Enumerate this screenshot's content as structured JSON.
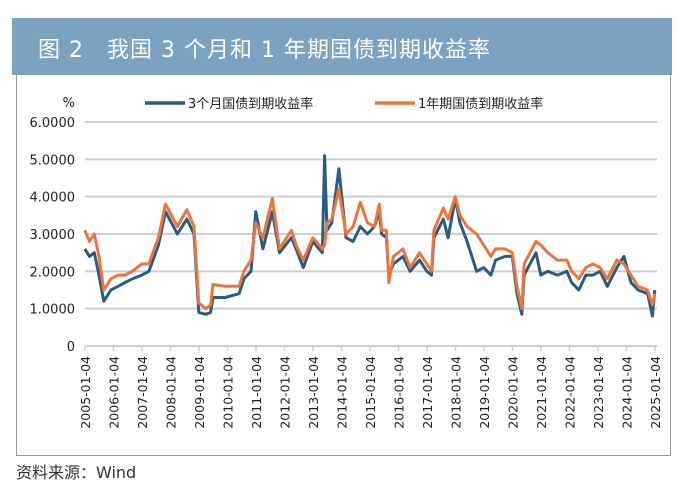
{
  "header": {
    "title": "图 2　我国 3 个月和 1 年期国债到期收益率"
  },
  "source": "资料来源：Wind",
  "chart_data": {
    "type": "line",
    "title": "图 2　我国 3 个月和 1 年期国债到期收益率",
    "ylabel": "%",
    "xlabel": "",
    "ylim": [
      0,
      6
    ],
    "yticks": [
      "0",
      "1.0000",
      "2.0000",
      "3.0000",
      "4.0000",
      "5.0000",
      "6.0000"
    ],
    "xticks": [
      "2005-01-04",
      "2006-01-04",
      "2007-01-04",
      "2008-01-04",
      "2009-01-04",
      "2010-01-04",
      "2011-01-04",
      "2012-01-04",
      "2013-01-04",
      "2014-01-04",
      "2015-01-04",
      "2016-01-04",
      "2017-01-04",
      "2018-01-04",
      "2019-01-04",
      "2020-01-04",
      "2021-01-04",
      "2022-01-04",
      "2023-01-04",
      "2024-01-04",
      "2025-01-04"
    ],
    "grid": true,
    "legend": "top",
    "series": [
      {
        "name": "3个月国债到期收益率",
        "color": "#2b5b80",
        "x": [
          "2005-01",
          "2005-03",
          "2005-05",
          "2005-07",
          "2005-09",
          "2005-12",
          "2006-03",
          "2006-06",
          "2006-09",
          "2007-01",
          "2007-04",
          "2007-08",
          "2007-11",
          "2008-04",
          "2008-08",
          "2008-11",
          "2009-01",
          "2009-04",
          "2009-06",
          "2009-07",
          "2009-12",
          "2010-06",
          "2010-08",
          "2010-11",
          "2011-01",
          "2011-04",
          "2011-08",
          "2011-11",
          "2012-04",
          "2012-06",
          "2012-09",
          "2013-01",
          "2013-05",
          "2013-06",
          "2013-07",
          "2013-09",
          "2013-12",
          "2014-03",
          "2014-06",
          "2014-09",
          "2014-12",
          "2015-03",
          "2015-05",
          "2015-06",
          "2015-08",
          "2015-09",
          "2015-11",
          "2016-03",
          "2016-06",
          "2016-10",
          "2017-01",
          "2017-03",
          "2017-04",
          "2017-08",
          "2017-10",
          "2018-01",
          "2018-03",
          "2018-06",
          "2018-10",
          "2019-01",
          "2019-04",
          "2019-06",
          "2019-10",
          "2020-01",
          "2020-03",
          "2020-05",
          "2020-06",
          "2020-11",
          "2021-01",
          "2021-04",
          "2021-08",
          "2021-12",
          "2022-02",
          "2022-05",
          "2022-08",
          "2022-11",
          "2023-02",
          "2023-05",
          "2023-09",
          "2023-12",
          "2024-03",
          "2024-06",
          "2024-10",
          "2024-12",
          "2025-01"
        ],
        "y": [
          2.6,
          2.4,
          2.5,
          1.9,
          1.2,
          1.5,
          1.6,
          1.7,
          1.8,
          1.9,
          2.0,
          2.7,
          3.6,
          3.0,
          3.4,
          3.0,
          0.9,
          0.85,
          0.9,
          1.3,
          1.3,
          1.4,
          1.8,
          2.0,
          3.6,
          2.6,
          3.6,
          2.5,
          2.9,
          2.6,
          2.1,
          2.8,
          2.5,
          5.1,
          3.1,
          3.3,
          4.75,
          2.9,
          2.8,
          3.2,
          3.0,
          3.2,
          3.6,
          3.0,
          2.9,
          1.9,
          2.2,
          2.4,
          2.0,
          2.3,
          2.0,
          1.9,
          2.9,
          3.4,
          2.9,
          3.95,
          3.3,
          2.8,
          2.0,
          2.1,
          1.9,
          2.3,
          2.4,
          2.4,
          1.4,
          0.85,
          1.9,
          2.5,
          1.9,
          2.0,
          1.9,
          2.0,
          1.7,
          1.5,
          1.9,
          1.9,
          2.0,
          1.6,
          2.1,
          2.4,
          1.7,
          1.5,
          1.4,
          0.8,
          1.5
        ]
      },
      {
        "name": "1年期国债到期收益率",
        "color": "#e8763f",
        "x": [
          "2005-01",
          "2005-03",
          "2005-05",
          "2005-07",
          "2005-09",
          "2005-12",
          "2006-03",
          "2006-06",
          "2006-09",
          "2007-01",
          "2007-04",
          "2007-08",
          "2007-11",
          "2008-04",
          "2008-08",
          "2008-11",
          "2009-01",
          "2009-04",
          "2009-06",
          "2009-07",
          "2009-12",
          "2010-06",
          "2010-08",
          "2010-11",
          "2011-01",
          "2011-04",
          "2011-08",
          "2011-11",
          "2012-04",
          "2012-06",
          "2012-09",
          "2013-01",
          "2013-05",
          "2013-06",
          "2013-07",
          "2013-09",
          "2013-12",
          "2014-03",
          "2014-06",
          "2014-09",
          "2014-12",
          "2015-03",
          "2015-05",
          "2015-06",
          "2015-08",
          "2015-09",
          "2015-11",
          "2016-03",
          "2016-06",
          "2016-10",
          "2017-01",
          "2017-03",
          "2017-04",
          "2017-08",
          "2017-10",
          "2018-01",
          "2018-03",
          "2018-06",
          "2018-10",
          "2019-01",
          "2019-04",
          "2019-06",
          "2019-10",
          "2020-01",
          "2020-03",
          "2020-05",
          "2020-06",
          "2020-11",
          "2021-01",
          "2021-04",
          "2021-08",
          "2021-12",
          "2022-02",
          "2022-05",
          "2022-08",
          "2022-11",
          "2023-02",
          "2023-05",
          "2023-09",
          "2023-12",
          "2024-03",
          "2024-06",
          "2024-10",
          "2024-12",
          "2025-01"
        ],
        "y": [
          3.1,
          2.8,
          3.0,
          2.4,
          1.5,
          1.8,
          1.9,
          1.9,
          2.0,
          2.2,
          2.2,
          2.9,
          3.8,
          3.2,
          3.65,
          3.2,
          1.15,
          1.0,
          1.1,
          1.65,
          1.6,
          1.6,
          2.0,
          2.3,
          3.3,
          2.9,
          3.95,
          2.6,
          3.1,
          2.7,
          2.3,
          2.9,
          2.6,
          2.7,
          3.3,
          3.4,
          4.2,
          3.0,
          3.2,
          3.85,
          3.3,
          3.2,
          3.8,
          3.1,
          3.1,
          1.7,
          2.4,
          2.6,
          2.1,
          2.5,
          2.2,
          2.0,
          3.1,
          3.7,
          3.4,
          4.0,
          3.5,
          3.2,
          3.0,
          2.7,
          2.4,
          2.6,
          2.6,
          2.5,
          1.6,
          1.0,
          2.2,
          2.8,
          2.7,
          2.5,
          2.3,
          2.3,
          2.0,
          1.8,
          2.1,
          2.2,
          2.1,
          1.8,
          2.3,
          2.2,
          1.9,
          1.6,
          1.5,
          1.1,
          1.4
        ]
      }
    ]
  }
}
